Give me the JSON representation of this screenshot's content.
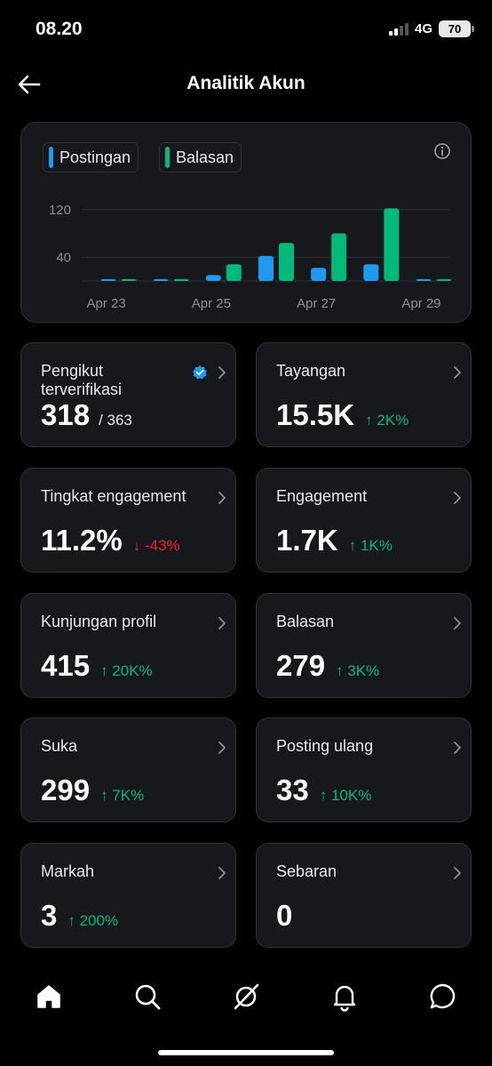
{
  "status": {
    "time": "08.20",
    "network": "4G",
    "battery": "70"
  },
  "header": {
    "title": "Analitik Akun"
  },
  "chart_data": {
    "type": "bar",
    "categories": [
      "Apr 23",
      "Apr 24",
      "Apr 25",
      "Apr 26",
      "Apr 27",
      "Apr 28",
      "Apr 29"
    ],
    "x_tick_labels": [
      "Apr 23",
      "Apr 25",
      "Apr 27",
      "Apr 29"
    ],
    "y_tick_labels": [
      "120",
      "40"
    ],
    "ylim": [
      0,
      160
    ],
    "grid": true,
    "legend": "top-left",
    "series": [
      {
        "name": "Postingan",
        "color": "#1d9bf0",
        "values": [
          0,
          0,
          10,
          42,
          22,
          28,
          1
        ]
      },
      {
        "name": "Balasan",
        "color": "#00ba7c",
        "values": [
          0,
          1,
          28,
          64,
          80,
          122,
          2
        ]
      }
    ]
  },
  "stats": [
    {
      "label": "Pengikut terverifikasi",
      "value": "318",
      "sub": "/ 363",
      "verified": true
    },
    {
      "label": "Tayangan",
      "value": "15.5K",
      "delta": "↑ 2K%",
      "dir": "up"
    },
    {
      "label": "Tingkat engagement",
      "value": "11.2%",
      "delta": "↓ -43%",
      "dir": "down"
    },
    {
      "label": "Engagement",
      "value": "1.7K",
      "delta": "↑ 1K%",
      "dir": "up"
    },
    {
      "label": "Kunjungan profil",
      "value": "415",
      "delta": "↑ 20K%",
      "dir": "up"
    },
    {
      "label": "Balasan",
      "value": "279",
      "delta": "↑ 3K%",
      "dir": "up"
    },
    {
      "label": "Suka",
      "value": "299",
      "delta": "↑ 7K%",
      "dir": "up"
    },
    {
      "label": "Posting ulang",
      "value": "33",
      "delta": "↑ 10K%",
      "dir": "up"
    },
    {
      "label": "Markah",
      "value": "3",
      "delta": "↑ 200%",
      "dir": "up"
    },
    {
      "label": "Sebaran",
      "value": "0"
    }
  ],
  "tabs": [
    "home-icon",
    "search-icon",
    "grok-icon",
    "bell-icon",
    "messages-icon"
  ]
}
